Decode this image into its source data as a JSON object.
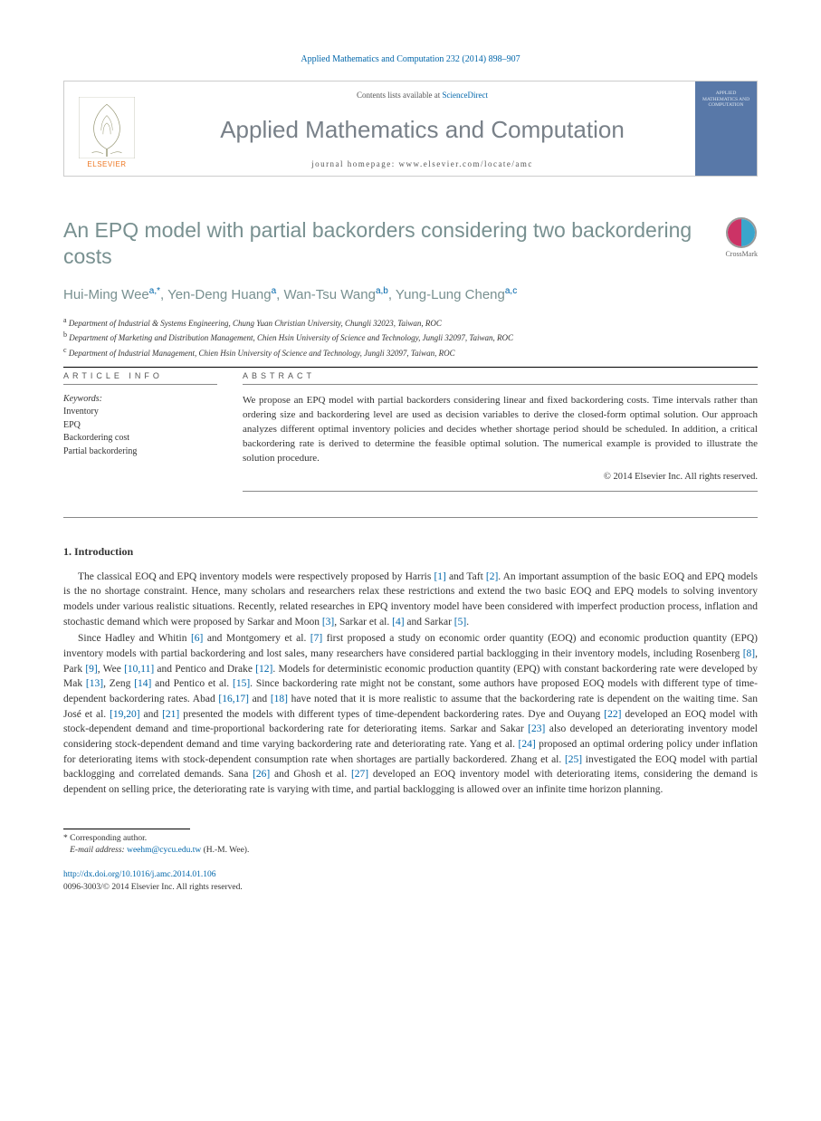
{
  "header": {
    "citation": "Applied Mathematics and Computation 232 (2014) 898–907",
    "contents_prefix": "Contents lists available at ",
    "contents_link": "ScienceDirect",
    "journal_name": "Applied Mathematics and Computation",
    "homepage_prefix": "journal homepage: ",
    "homepage_url": "www.elsevier.com/locate/amc",
    "publisher": "ELSEVIER",
    "cover_text": "APPLIED MATHEMATICS AND COMPUTATION"
  },
  "title": "An EPQ model with partial backorders considering two backordering costs",
  "crossmark": "CrossMark",
  "authors_html": "Hui-Ming Wee|a,*|, Yen-Deng Huang|a|, Wan-Tsu Wang|a,b|, Yung-Lung Cheng|a,c|",
  "affiliations": {
    "a": "Department of Industrial & Systems Engineering, Chung Yuan Christian University, Chungli 32023, Taiwan, ROC",
    "b": "Department of Marketing and Distribution Management, Chien Hsin University of Science and Technology, Jungli 32097, Taiwan, ROC",
    "c": "Department of Industrial Management, Chien Hsin University of Science and Technology, Jungli 32097, Taiwan, ROC"
  },
  "info": {
    "label": "ARTICLE INFO",
    "kw_head": "Keywords:",
    "keywords": [
      "Inventory",
      "EPQ",
      "Backordering cost",
      "Partial backordering"
    ]
  },
  "abstract": {
    "label": "ABSTRACT",
    "text": "We propose an EPQ model with partial backorders considering linear and fixed backordering costs. Time intervals rather than ordering size and backordering level are used as decision variables to derive the closed-form optimal solution. Our approach analyzes different optimal inventory policies and decides whether shortage period should be scheduled. In addition, a critical backordering rate is derived to determine the feasible optimal solution. The numerical example is provided to illustrate the solution procedure.",
    "copyright": "© 2014 Elsevier Inc. All rights reserved."
  },
  "section1": {
    "heading": "1. Introduction",
    "p1": "The classical EOQ and EPQ inventory models were respectively proposed by Harris [1] and Taft [2]. An important assumption of the basic EOQ and EPQ models is the no shortage constraint. Hence, many scholars and researchers relax these restrictions and extend the two basic EOQ and EPQ models to solving inventory models under various realistic situations. Recently, related researches in EPQ inventory model have been considered with imperfect production process, inflation and stochastic demand which were proposed by Sarkar and Moon [3], Sarkar et al. [4] and Sarkar [5].",
    "p2": "Since Hadley and Whitin [6] and Montgomery et al. [7] first proposed a study on economic order quantity (EOQ) and economic production quantity (EPQ) inventory models with partial backordering and lost sales, many researchers have considered partial backlogging in their inventory models, including Rosenberg [8], Park [9], Wee [10,11] and Pentico and Drake [12]. Models for deterministic economic production quantity (EPQ) with constant backordering rate were developed by Mak [13], Zeng [14] and Pentico et al. [15]. Since backordering rate might not be constant, some authors have proposed EOQ models with different type of time-dependent backordering rates. Abad [16,17] and [18] have noted that it is more realistic to assume that the backordering rate is dependent on the waiting time. San José et al. [19,20] and [21] presented the models with different types of time-dependent backordering rates. Dye and Ouyang [22] developed an EOQ model with stock-dependent demand and time-proportional backordering rate for deteriorating items. Sarkar and Sakar [23] also developed an deteriorating inventory model considering stock-dependent demand and time varying backordering rate and deteriorating rate. Yang et al. [24] proposed an optimal ordering policy under inflation for deteriorating items with stock-dependent consumption rate when shortages are partially backordered. Zhang et al. [25] investigated the EOQ model with partial backlogging and correlated demands. Sana [26] and Ghosh et al. [27] developed an EOQ inventory model with deteriorating items, considering the demand is dependent on selling price, the deteriorating rate is varying with time, and partial backlogging is allowed over an infinite time horizon planning."
  },
  "footnote": {
    "corr": "* Corresponding author.",
    "email_label": "E-mail address:",
    "email": "weehm@cycu.edu.tw",
    "email_who": "(H.-M. Wee)."
  },
  "footer": {
    "doi": "http://dx.doi.org/10.1016/j.amc.2014.01.106",
    "issn_line": "0096-3003/© 2014 Elsevier Inc. All rights reserved."
  },
  "colors": {
    "link": "#0066aa",
    "heading_muted": "#789090",
    "journal_gray": "#788088",
    "orange": "#ee7722"
  }
}
